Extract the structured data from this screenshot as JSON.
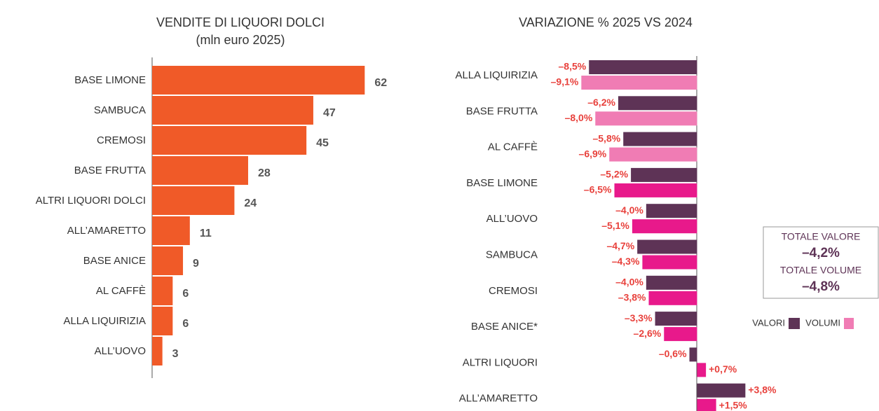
{
  "chart_data": [
    {
      "type": "bar",
      "orientation": "horizontal",
      "title": "VENDITE DI LIQUORI DOLCI",
      "subtitle": "(mln euro 2025)",
      "categories": [
        "BASE LIMONE",
        "SAMBUCA",
        "CREMOSI",
        "BASE FRUTTA",
        "ALTRI LIQUORI DOLCI",
        "ALL’AMARETTO",
        "BASE ANICE",
        "AL CAFFÈ",
        "ALLA LIQUIRIZIA",
        "ALL’UOVO"
      ],
      "values": [
        62,
        47,
        45,
        28,
        24,
        11,
        9,
        6,
        6,
        3
      ],
      "color": "#f05a28",
      "xlim": [
        0,
        65
      ]
    },
    {
      "type": "bar",
      "orientation": "horizontal",
      "title": "VARIAZIONE % 2025 VS 2024",
      "categories": [
        "ALLA LIQUIRIZIA",
        "BASE FRUTTA",
        "AL CAFFÈ",
        "BASE LIMONE",
        "ALL’UOVO",
        "SAMBUCA",
        "CREMOSI",
        "BASE ANICE*",
        "ALTRI LIQUORI",
        "ALL’AMARETTO"
      ],
      "series": [
        {
          "name": "VALORI",
          "color": "#5e3356",
          "values": [
            -8.5,
            -6.2,
            -5.8,
            -5.2,
            -4.0,
            -4.7,
            -4.0,
            -3.3,
            -0.6,
            3.8
          ],
          "value_labels": [
            "–8,5%",
            "–6,2%",
            "–5,8%",
            "–5,2%",
            "–4,0%",
            "–4,7%",
            "–4,0%",
            "–3,3%",
            "–0,6%",
            "+3,8%"
          ]
        },
        {
          "name": "VOLUMI",
          "color": "#f07cb4",
          "colors": [
            "#f07cb4",
            "#f07cb4",
            "#f07cb4",
            "#e8198b",
            "#e8198b",
            "#e8198b",
            "#e8198b",
            "#e8198b",
            "#e8198b",
            "#e8198b"
          ],
          "values": [
            -9.1,
            -8.0,
            -6.9,
            -6.5,
            -5.1,
            -4.3,
            -3.8,
            -2.6,
            0.7,
            1.5
          ],
          "value_labels": [
            "–9,1%",
            "–8,0%",
            "–6,9%",
            "–6,5%",
            "–5,1%",
            "–4,3%",
            "–3,8%",
            "–2,6%",
            "+0,7%",
            "+1,5%"
          ]
        }
      ],
      "xlim": [
        -10,
        4
      ],
      "totals": [
        {
          "label": "TOTALE VALORE",
          "value": "–4,2%"
        },
        {
          "label": "TOTALE VOLUME",
          "value": "–4,8%"
        }
      ]
    }
  ]
}
